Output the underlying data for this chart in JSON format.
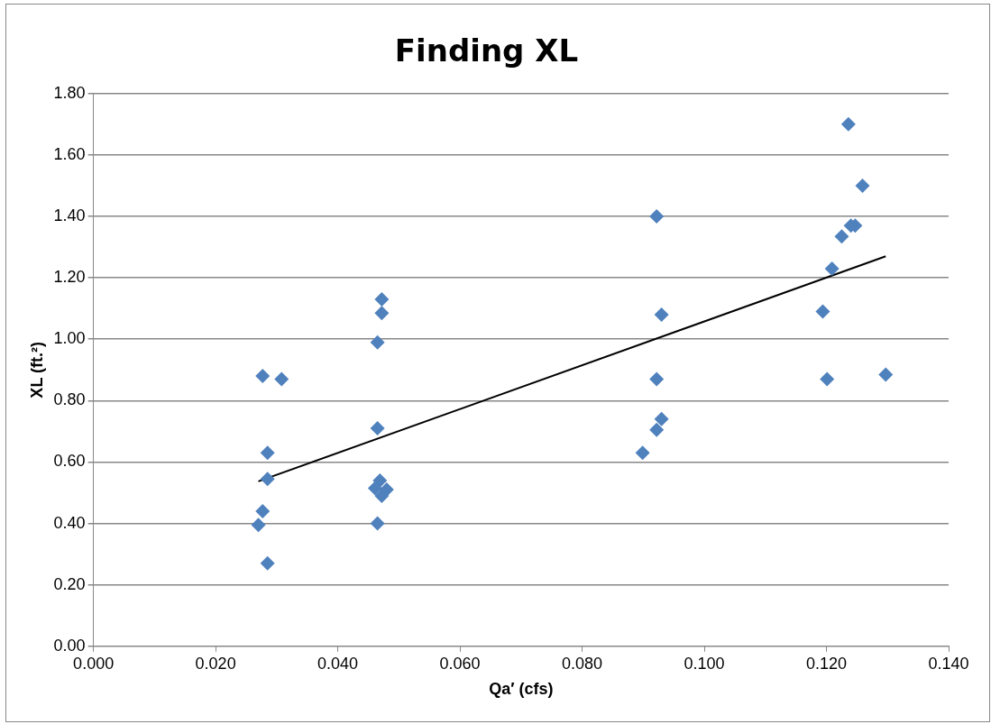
{
  "chart_data": {
    "type": "scatter",
    "title": "Finding XL",
    "xlabel": "Qa′ (cfs)",
    "ylabel": "XL (ft.²)",
    "xlim": [
      0,
      0.14
    ],
    "ylim": [
      0,
      1.8
    ],
    "xticks": [
      {
        "value": 0,
        "label": "0.000"
      },
      {
        "value": 0.02,
        "label": "0.020"
      },
      {
        "value": 0.04,
        "label": "0.040"
      },
      {
        "value": 0.06,
        "label": "0.060"
      },
      {
        "value": 0.08,
        "label": "0.080"
      },
      {
        "value": 0.1,
        "label": "0.100"
      },
      {
        "value": 0.12,
        "label": "0.120"
      },
      {
        "value": 0.14,
        "label": "0.140"
      }
    ],
    "yticks": [
      {
        "value": 0,
        "label": "0.00"
      },
      {
        "value": 0.2,
        "label": "0.20"
      },
      {
        "value": 0.4,
        "label": "0.40"
      },
      {
        "value": 0.6,
        "label": "0.60"
      },
      {
        "value": 0.8,
        "label": "0.80"
      },
      {
        "value": 1,
        "label": "1.00"
      },
      {
        "value": 1.2,
        "label": "1.20"
      },
      {
        "value": 1.4,
        "label": "1.40"
      },
      {
        "value": 1.6,
        "label": "1.60"
      },
      {
        "value": 1.8,
        "label": "1.80"
      }
    ],
    "grid": "y",
    "legend": false,
    "marker": "diamond",
    "series": [
      {
        "color": "#4f81bd",
        "x": [
          0.0277,
          0.0308,
          0.0285,
          0.0285,
          0.0277,
          0.027,
          0.0285,
          0.0465,
          0.0465,
          0.0469,
          0.0461,
          0.048,
          0.0472,
          0.0472,
          0.0472,
          0.0465,
          0.0922,
          0.093,
          0.0922,
          0.093,
          0.0922,
          0.0899,
          0.1236,
          0.1259,
          0.1247,
          0.124,
          0.1225,
          0.1209,
          0.1194,
          0.1201,
          0.1297
        ],
        "values": [
          0.88,
          0.87,
          0.63,
          0.545,
          0.44,
          0.395,
          0.27,
          0.71,
          0.4,
          0.54,
          0.515,
          0.51,
          0.49,
          1.13,
          1.085,
          0.99,
          1.4,
          1.08,
          0.87,
          0.74,
          0.705,
          0.63,
          1.7,
          1.5,
          1.37,
          1.37,
          1.335,
          1.23,
          1.09,
          0.87,
          0.885
        ]
      },
      {
        "type": "line",
        "color": "#000000",
        "marker": "none",
        "line_style": "solid",
        "x": [
          0.027,
          0.1297
        ],
        "values": [
          0.537,
          1.27
        ]
      }
    ]
  }
}
